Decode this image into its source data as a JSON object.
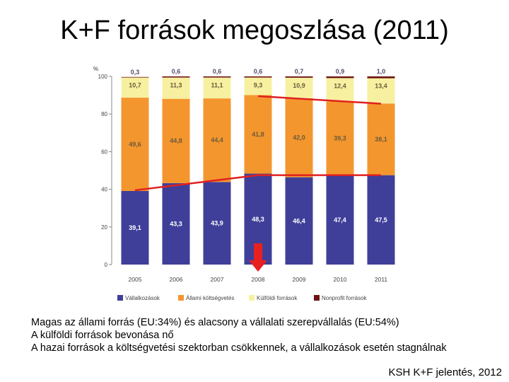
{
  "title": "K+F források megoszlása (2011)",
  "notes": [
    "Magas az állami forrás (EU:34%) és alacsony a vállalati szerepvállalás (EU:54%)",
    "A külföldi források bevonása nő",
    "A hazai források a költségvetési szektorban csökkennek, a vállalkozások esetén stagnálnak"
  ],
  "source": "KSH K+F jelentés, 2012",
  "chart_data": {
    "type": "bar",
    "stacked": true,
    "y_unit": "%",
    "ylim": [
      0,
      100
    ],
    "yticks": [
      "0",
      "20",
      "40",
      "60",
      "80",
      "100"
    ],
    "categories": [
      "2005",
      "2006",
      "2007",
      "2008",
      "2009",
      "2010",
      "2011"
    ],
    "series": [
      {
        "name": "Vállalkozások",
        "color": "#3f3f9a",
        "values": [
          39.1,
          43.3,
          43.9,
          48.3,
          46.4,
          47.4,
          47.5
        ],
        "labels": [
          "39,1",
          "43,3",
          "43,9",
          "48,3",
          "46,4",
          "47,4",
          "47,5"
        ]
      },
      {
        "name": "Állami költségvetés",
        "color": "#f4962e",
        "values": [
          49.6,
          44.8,
          44.4,
          41.8,
          42.0,
          39.3,
          38.1
        ],
        "labels": [
          "49,6",
          "44,8",
          "44,4",
          "41,8",
          "42,0",
          "39,3",
          "38,1"
        ]
      },
      {
        "name": "Külföldi források",
        "color": "#f7f0a0",
        "values": [
          10.7,
          11.3,
          11.1,
          9.3,
          10.9,
          12.4,
          13.4
        ],
        "labels": [
          "10,7",
          "11,3",
          "11,1",
          "9,3",
          "10,9",
          "12,4",
          "13,4"
        ]
      },
      {
        "name": "Nonprofit források",
        "color": "#6e1313",
        "values": [
          0.3,
          0.6,
          0.6,
          0.6,
          0.7,
          0.9,
          1.0
        ],
        "labels": [
          "0,3",
          "0,6",
          "0,6",
          "0,6",
          "0,7",
          "0,9",
          "1,0"
        ]
      }
    ],
    "trend_lines": [
      {
        "color": "#e02020",
        "points": [
          [
            "2005",
            39.5
          ],
          [
            "2008",
            47.5
          ],
          [
            "2011",
            47.5
          ]
        ]
      },
      {
        "color": "#e02020",
        "points": [
          [
            "2008",
            89.5
          ],
          [
            "2011",
            85.5
          ]
        ]
      }
    ],
    "highlight_arrow": {
      "category": "2008",
      "color": "#e82020"
    },
    "legend_position": "bottom",
    "grid": false
  }
}
